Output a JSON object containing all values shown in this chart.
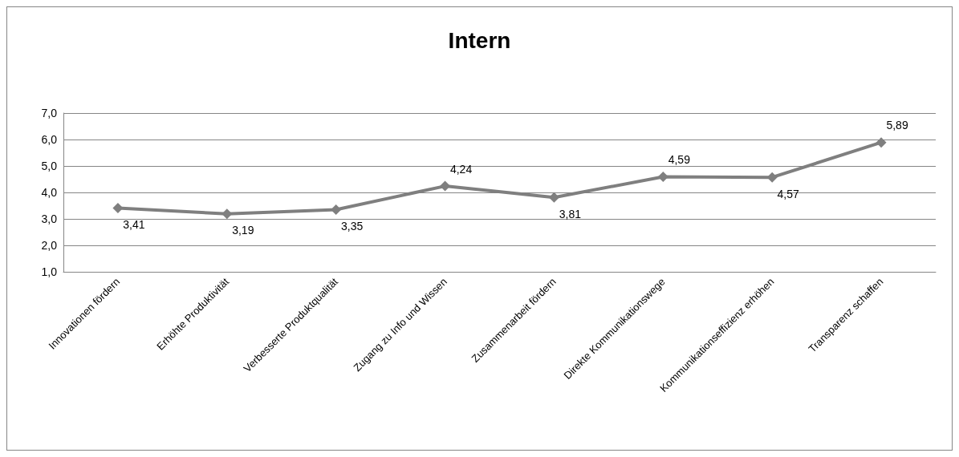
{
  "chart_data": {
    "type": "line",
    "title": "Intern",
    "categories": [
      "Innovationen fördern",
      "Erhöhte Produktivität",
      "Verbesserte Produktqualität",
      "Zugang zu Info und Wissen",
      "Zusammenarbeit fördern",
      "Direkte Kommunikationswege",
      "Kommunikationseffizienz erhöhen",
      "Transparenz schaffen"
    ],
    "series": [
      {
        "color": "#7f7f7f",
        "values": [
          3.41,
          3.19,
          3.35,
          4.24,
          3.81,
          4.59,
          4.57,
          5.89
        ],
        "value_labels": [
          "3,41",
          "3,19",
          "3,35",
          "4,24",
          "3,81",
          "4,59",
          "4,57",
          "5,89"
        ]
      }
    ],
    "ylim": [
      1,
      7
    ],
    "yticks": [
      {
        "value": 1,
        "label": "1,0"
      },
      {
        "value": 2,
        "label": "2,0"
      },
      {
        "value": 3,
        "label": "3,0"
      },
      {
        "value": 4,
        "label": "4,0"
      },
      {
        "value": 5,
        "label": "5,0"
      },
      {
        "value": 6,
        "label": "6,0"
      },
      {
        "value": 7,
        "label": "7,0"
      }
    ],
    "grid": "y",
    "marker": "diamond",
    "line_style": "solid"
  }
}
